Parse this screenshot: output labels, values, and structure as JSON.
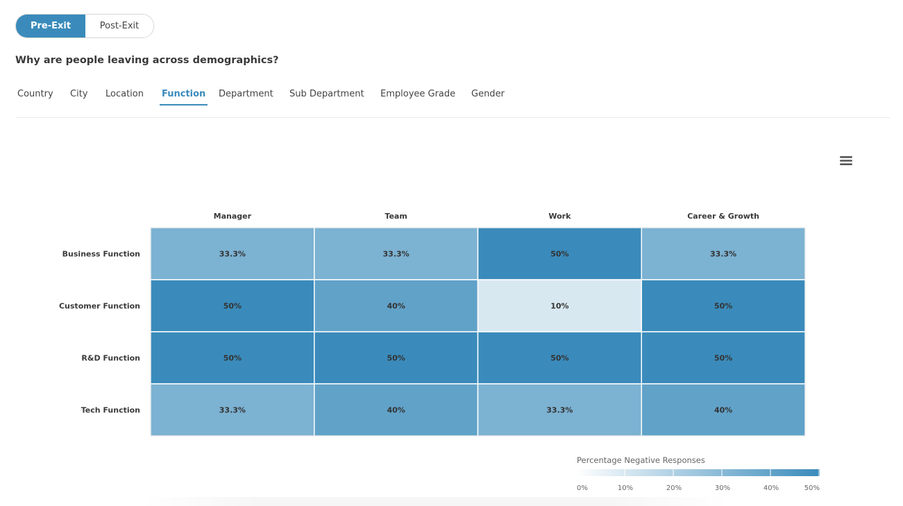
{
  "toggle": {
    "pre_exit": "Pre-Exit",
    "post_exit": "Post-Exit"
  },
  "question": "Why are people leaving across demographics?",
  "tabs": [
    {
      "label": "Country"
    },
    {
      "label": "City"
    },
    {
      "label": "Location"
    },
    {
      "label": "Function",
      "selected": true
    },
    {
      "label": "Department"
    },
    {
      "label": "Sub Department"
    },
    {
      "label": "Employee Grade"
    },
    {
      "label": "Gender"
    }
  ],
  "menu_icon": "hamburger-menu-icon",
  "chart_data": {
    "type": "heatmap",
    "columns": [
      "Manager",
      "Team",
      "Work",
      "Career & Growth"
    ],
    "rows": [
      "Business Function",
      "Customer Function",
      "R&D Function",
      "Tech Function"
    ],
    "values": [
      [
        33.3,
        33.3,
        50,
        33.3
      ],
      [
        50,
        40,
        10,
        50
      ],
      [
        50,
        50,
        50,
        50
      ],
      [
        33.3,
        40,
        33.3,
        40
      ]
    ],
    "labels": [
      [
        "33.3%",
        "33.3%",
        "50%",
        "33.3%"
      ],
      [
        "50%",
        "40%",
        "10%",
        "50%"
      ],
      [
        "50%",
        "50%",
        "50%",
        "50%"
      ],
      [
        "33.3%",
        "40%",
        "33.3%",
        "40%"
      ]
    ],
    "color_axis": {
      "title": "Percentage Negative Responses",
      "min": 0,
      "max": 50,
      "ticks": [
        "0%",
        "10%",
        "20%",
        "30%",
        "40%",
        "50%"
      ],
      "min_color": "#ffffff",
      "max_color": "#3a8bbb"
    }
  }
}
